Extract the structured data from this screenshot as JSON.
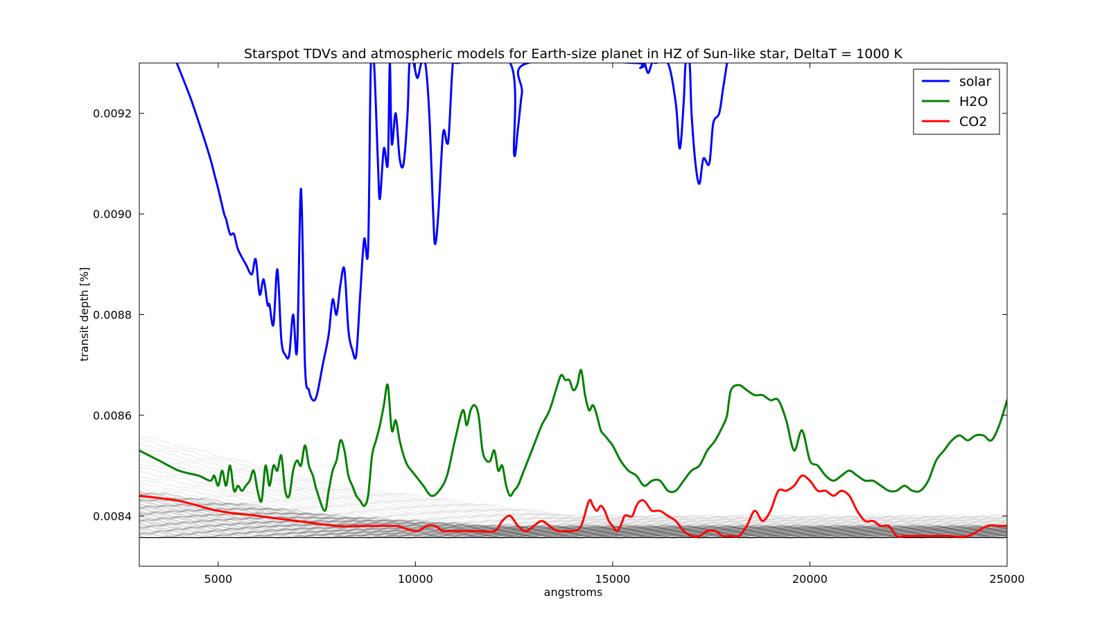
{
  "chart_data": {
    "type": "line",
    "title": "Starspot TDVs and atmospheric models for Earth-size planet in HZ of Sun-like star, DeltaT = 1000 K",
    "xlabel": "angstroms",
    "ylabel": "transit depth [%]",
    "xlim": [
      3000,
      25000
    ],
    "ylim": [
      0.0083,
      0.0093
    ],
    "xticks": [
      5000,
      10000,
      15000,
      20000,
      25000
    ],
    "xtick_labels": [
      "5000",
      "10000",
      "15000",
      "20000",
      "25000"
    ],
    "yticks": [
      0.0084,
      0.0086,
      0.0088,
      0.009,
      0.0092
    ],
    "ytick_labels": [
      "0.0084",
      "0.0086",
      "0.0088",
      "0.0090",
      "0.0092"
    ],
    "grid": false,
    "legend": {
      "position": "top-right",
      "entries": [
        "solar",
        "H2O",
        "CO2"
      ]
    },
    "hline": 0.008357,
    "tdv_band": {
      "color": "#000000",
      "x": [
        3000,
        5000,
        8000,
        10000,
        12000,
        14000,
        16000,
        17000,
        20000,
        23000,
        25000
      ],
      "upper": [
        0.00856,
        0.00852,
        0.00846,
        0.00844,
        0.00842,
        0.0084,
        0.0084,
        0.0084,
        0.0084,
        0.0084,
        0.0084
      ],
      "core_upper": [
        0.00845,
        0.00843,
        0.0084,
        0.00839,
        0.00838,
        0.00838,
        0.00838,
        0.00838,
        0.00838,
        0.00838,
        0.00838
      ],
      "core_lower": [
        0.00837,
        0.00837,
        0.00837,
        0.00837,
        0.00837,
        0.00837,
        0.00837,
        0.00837,
        0.00837,
        0.00837,
        0.00837
      ],
      "lower": [
        0.008358,
        0.008358,
        0.008358,
        0.008358,
        0.008358,
        0.008358,
        0.008358,
        0.008358,
        0.008358,
        0.008358,
        0.008358
      ]
    },
    "series": [
      {
        "name": "solar",
        "color": "#0000ff",
        "x": [
          3950,
          4300,
          4600,
          4800,
          4900,
          5000,
          5150,
          5200,
          5300,
          5400,
          5500,
          5700,
          5850,
          5950,
          6050,
          6150,
          6250,
          6300,
          6400,
          6500,
          6600,
          6700,
          6800,
          6900,
          7000,
          7100,
          7200,
          7300,
          7400,
          7500,
          7650,
          7800,
          7900,
          8000,
          8100,
          8200,
          8300,
          8400,
          8500,
          8600,
          8700,
          8800,
          8870,
          8950,
          9050,
          9100,
          9200,
          9300,
          9350,
          9400,
          9500,
          9600,
          9700,
          9800,
          9850,
          9950,
          10050,
          10150,
          10250,
          10350,
          10450,
          10500,
          10580,
          10700,
          10800,
          10850,
          10950,
          11050,
          12400,
          12500,
          12600,
          12700,
          12850,
          15600,
          15700,
          15800,
          15900,
          16000,
          16100,
          16400,
          16600,
          16700,
          16800,
          16850,
          16950,
          17000,
          17100,
          17200,
          17300,
          17450,
          17550,
          17700,
          17800,
          17900
        ],
        "y": [
          0.0093,
          0.00923,
          0.00916,
          0.00911,
          0.00908,
          0.00905,
          0.009,
          0.00899,
          0.00896,
          0.00896,
          0.00893,
          0.0089,
          0.00888,
          0.00891,
          0.00884,
          0.00887,
          0.00882,
          0.00882,
          0.00878,
          0.00889,
          0.00875,
          0.00872,
          0.00872,
          0.0088,
          0.00873,
          0.00905,
          0.0087,
          0.00865,
          0.00863,
          0.00864,
          0.0087,
          0.00876,
          0.00883,
          0.0088,
          0.00886,
          0.00889,
          0.00877,
          0.00873,
          0.00872,
          0.00884,
          0.00895,
          0.00893,
          0.0093,
          0.0093,
          0.0091,
          0.00903,
          0.00913,
          0.0091,
          0.0093,
          0.00914,
          0.0092,
          0.00911,
          0.0091,
          0.0092,
          0.0093,
          0.0093,
          0.00927,
          0.0093,
          0.0093,
          0.0092,
          0.009,
          0.00894,
          0.009,
          0.00916,
          0.00914,
          0.00916,
          0.0093,
          0.0093,
          0.0093,
          0.00912,
          0.00917,
          0.00924,
          0.0093,
          0.0093,
          0.00929,
          0.0093,
          0.00928,
          0.0093,
          0.0093,
          0.0093,
          0.00922,
          0.00913,
          0.00922,
          0.0093,
          0.0093,
          0.0092,
          0.0091,
          0.00906,
          0.00911,
          0.0091,
          0.00918,
          0.0092,
          0.00925,
          0.0093
        ]
      },
      {
        "name": "H2O",
        "color": "#008000",
        "x": [
          3000,
          3500,
          4000,
          4500,
          4800,
          4900,
          5000,
          5100,
          5200,
          5300,
          5400,
          5500,
          5600,
          5700,
          5800,
          5900,
          6000,
          6100,
          6200,
          6300,
          6400,
          6500,
          6600,
          6700,
          6800,
          6900,
          7000,
          7100,
          7200,
          7300,
          7400,
          7500,
          7700,
          7800,
          7900,
          8000,
          8100,
          8200,
          8300,
          8400,
          8500,
          8600,
          8700,
          8800,
          8900,
          9000,
          9100,
          9200,
          9300,
          9400,
          9500,
          9600,
          9700,
          9800,
          9900,
          10000,
          10200,
          10400,
          10600,
          10800,
          11000,
          11200,
          11300,
          11400,
          11500,
          11600,
          11700,
          11800,
          11900,
          12000,
          12100,
          12200,
          12300,
          12400,
          12500,
          12600,
          12700,
          12800,
          13000,
          13200,
          13400,
          13600,
          13700,
          13800,
          13900,
          14000,
          14100,
          14200,
          14300,
          14400,
          14500,
          14600,
          14700,
          14800,
          14900,
          15000,
          15200,
          15400,
          15600,
          15800,
          16000,
          16200,
          16400,
          16600,
          16800,
          17000,
          17200,
          17400,
          17600,
          17800,
          17900,
          18000,
          18200,
          18400,
          18600,
          18800,
          19000,
          19200,
          19400,
          19600,
          19800,
          20000,
          20200,
          20400,
          20600,
          20800,
          21000,
          21200,
          21400,
          21600,
          21800,
          22000,
          22200,
          22400,
          22600,
          22800,
          23000,
          23200,
          23400,
          23600,
          23800,
          24000,
          24200,
          24400,
          24600,
          24800,
          25000
        ],
        "y": [
          0.00853,
          0.00851,
          0.00849,
          0.00848,
          0.00847,
          0.00848,
          0.00846,
          0.00849,
          0.00846,
          0.0085,
          0.00845,
          0.00846,
          0.00845,
          0.00846,
          0.00847,
          0.00849,
          0.00845,
          0.00843,
          0.0085,
          0.00846,
          0.0085,
          0.00849,
          0.00852,
          0.00845,
          0.00844,
          0.00849,
          0.00851,
          0.0085,
          0.00854,
          0.0085,
          0.00848,
          0.00845,
          0.00841,
          0.00845,
          0.00849,
          0.00851,
          0.00855,
          0.00853,
          0.00848,
          0.00846,
          0.00844,
          0.00843,
          0.00842,
          0.00844,
          0.00852,
          0.00855,
          0.00858,
          0.00862,
          0.00866,
          0.00857,
          0.00859,
          0.00855,
          0.00852,
          0.0085,
          0.00849,
          0.00848,
          0.00846,
          0.00844,
          0.00845,
          0.00848,
          0.00855,
          0.00861,
          0.00858,
          0.00861,
          0.00862,
          0.0086,
          0.00853,
          0.00851,
          0.00851,
          0.00853,
          0.00849,
          0.0085,
          0.00846,
          0.00844,
          0.00845,
          0.00846,
          0.00848,
          0.0085,
          0.00854,
          0.00858,
          0.00861,
          0.00866,
          0.00868,
          0.00867,
          0.00867,
          0.00865,
          0.00866,
          0.00869,
          0.00864,
          0.00861,
          0.00862,
          0.0086,
          0.00857,
          0.00856,
          0.00855,
          0.00854,
          0.00851,
          0.00849,
          0.00848,
          0.00846,
          0.00847,
          0.00847,
          0.00845,
          0.00845,
          0.00847,
          0.00849,
          0.0085,
          0.00853,
          0.00855,
          0.00858,
          0.0086,
          0.00865,
          0.00866,
          0.00865,
          0.00864,
          0.00864,
          0.00863,
          0.00863,
          0.00859,
          0.00853,
          0.00857,
          0.00851,
          0.0085,
          0.00848,
          0.00847,
          0.00848,
          0.00849,
          0.00848,
          0.00847,
          0.00847,
          0.00846,
          0.00845,
          0.00845,
          0.00846,
          0.00845,
          0.00845,
          0.00847,
          0.00851,
          0.00853,
          0.00855,
          0.00856,
          0.00855,
          0.00856,
          0.00856,
          0.00855,
          0.00858,
          0.00863
        ]
      },
      {
        "name": "CO2",
        "color": "#ff0000",
        "x": [
          3000,
          4000,
          5000,
          6000,
          7000,
          8000,
          8600,
          8700,
          8800,
          9000,
          9500,
          10000,
          10300,
          10500,
          10700,
          11000,
          11500,
          12000,
          12200,
          12400,
          12600,
          12800,
          13000,
          13200,
          13400,
          13600,
          13800,
          14000,
          14200,
          14400,
          14500,
          14600,
          14700,
          14800,
          14900,
          15000,
          15100,
          15200,
          15300,
          15400,
          15500,
          15600,
          15700,
          15800,
          15900,
          16000,
          16200,
          16400,
          16600,
          16800,
          17000,
          17200,
          17400,
          17600,
          17800,
          18000,
          18200,
          18400,
          18600,
          18800,
          19000,
          19200,
          19400,
          19600,
          19800,
          20000,
          20200,
          20400,
          20600,
          20800,
          21000,
          21200,
          21400,
          21600,
          21800,
          22000,
          22200,
          22400,
          22600,
          22800,
          23000,
          23500,
          24000,
          24500,
          24800,
          25000
        ],
        "y": [
          0.00844,
          0.00843,
          0.00841,
          0.0084,
          0.00839,
          0.00838,
          0.00838,
          0.00838,
          0.00838,
          0.00838,
          0.00838,
          0.00837,
          0.00838,
          0.00838,
          0.00837,
          0.00837,
          0.00837,
          0.00837,
          0.00839,
          0.0084,
          0.00838,
          0.00837,
          0.00838,
          0.00839,
          0.00838,
          0.00837,
          0.00837,
          0.00837,
          0.00838,
          0.00843,
          0.00842,
          0.00841,
          0.00842,
          0.00841,
          0.00839,
          0.00838,
          0.00837,
          0.00838,
          0.0084,
          0.0084,
          0.0084,
          0.00842,
          0.00843,
          0.00843,
          0.00842,
          0.00841,
          0.00841,
          0.0084,
          0.00839,
          0.00837,
          0.00836,
          0.00836,
          0.00837,
          0.00837,
          0.00836,
          0.00836,
          0.00836,
          0.00838,
          0.00841,
          0.00839,
          0.00841,
          0.00845,
          0.00845,
          0.00846,
          0.00848,
          0.00847,
          0.00845,
          0.00845,
          0.00844,
          0.00845,
          0.00844,
          0.00841,
          0.00839,
          0.00839,
          0.00838,
          0.00838,
          0.00836,
          0.00836,
          0.00836,
          0.00836,
          0.00836,
          0.00836,
          0.00836,
          0.00838,
          0.00838,
          0.00838
        ]
      }
    ]
  }
}
